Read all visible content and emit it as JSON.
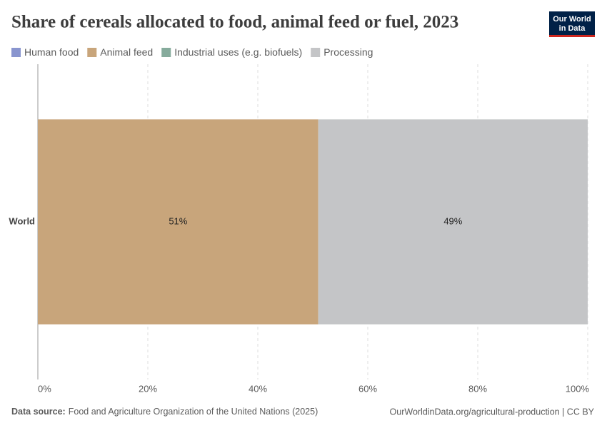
{
  "chart_data": {
    "type": "stacked-bar-horizontal",
    "title": "Share of cereals allocated to food, animal feed or fuel, 2023",
    "categories": [
      "World"
    ],
    "series": [
      {
        "name": "Human food",
        "color": "#8995cf",
        "values": [
          0
        ]
      },
      {
        "name": "Animal feed",
        "color": "#c8a57b",
        "values": [
          51
        ],
        "value_labels": [
          "51%"
        ]
      },
      {
        "name": "Industrial uses (e.g. biofuels)",
        "color": "#86ab9c",
        "values": [
          0
        ]
      },
      {
        "name": "Processing",
        "color": "#c4c5c7",
        "values": [
          49
        ],
        "value_labels": [
          "49%"
        ]
      }
    ],
    "xlim": [
      0,
      100
    ],
    "xticks": [
      {
        "value": 0,
        "label": "0%"
      },
      {
        "value": 20,
        "label": "20%"
      },
      {
        "value": 40,
        "label": "40%"
      },
      {
        "value": 60,
        "label": "60%"
      },
      {
        "value": 80,
        "label": "80%"
      },
      {
        "value": 100,
        "label": "100%"
      }
    ],
    "grid": true,
    "data_source_label": "Data source:",
    "data_source": "Food and Agriculture Organization of the United Nations (2025)",
    "credit": "OurWorldinData.org/agricultural-production | CC BY",
    "logo": [
      "Our World",
      "in Data"
    ]
  }
}
